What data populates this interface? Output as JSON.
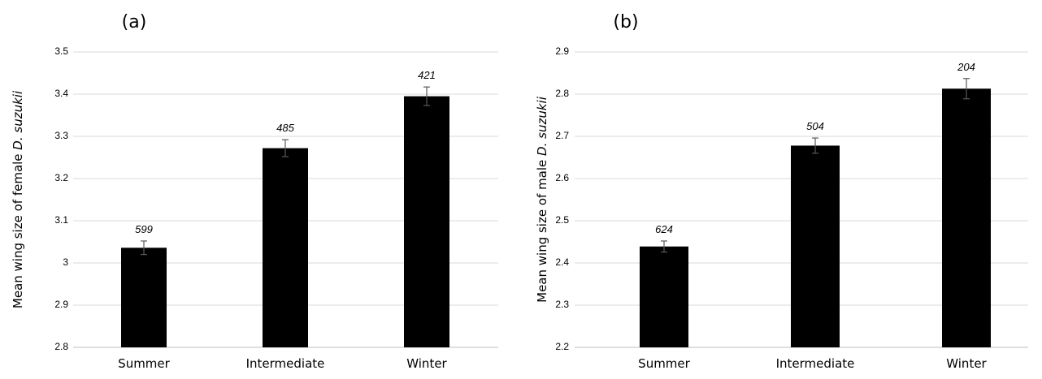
{
  "colors": {
    "bar": "#000000",
    "grid": "#d9d9d9",
    "error_bar": "#595959"
  },
  "chart_data": [
    {
      "type": "bar",
      "panel_label": "(a)",
      "ylabel_prefix": "Mean wing size of female ",
      "ylabel_italic": "D. suzukii",
      "categories": [
        "Summer",
        "Intermediate",
        "Winter"
      ],
      "values": [
        3.036,
        3.272,
        3.395
      ],
      "errors": [
        0.016,
        0.02,
        0.022
      ],
      "data_labels": [
        "599",
        "485",
        "421"
      ],
      "ylim": [
        2.8,
        3.5
      ],
      "yticks": [
        2.8,
        2.9,
        3.0,
        3.1,
        3.2,
        3.3,
        3.4,
        3.5
      ],
      "ytick_labels": [
        "2.8",
        "2.9",
        "3",
        "3.1",
        "3.2",
        "3.3",
        "3.4",
        "3.5"
      ],
      "grid": true
    },
    {
      "type": "bar",
      "panel_label": "(b)",
      "ylabel_prefix": "Mean wing size of male ",
      "ylabel_italic": "D. suzukii",
      "categories": [
        "Summer",
        "Intermediate",
        "Winter"
      ],
      "values": [
        2.439,
        2.678,
        2.813
      ],
      "errors": [
        0.013,
        0.018,
        0.024
      ],
      "data_labels": [
        "624",
        "504",
        "204"
      ],
      "ylim": [
        2.2,
        2.9
      ],
      "yticks": [
        2.2,
        2.3,
        2.4,
        2.5,
        2.6,
        2.7,
        2.8,
        2.9
      ],
      "ytick_labels": [
        "2.2",
        "2.3",
        "2.4",
        "2.5",
        "2.6",
        "2.7",
        "2.8",
        "2.9"
      ],
      "grid": true
    }
  ]
}
